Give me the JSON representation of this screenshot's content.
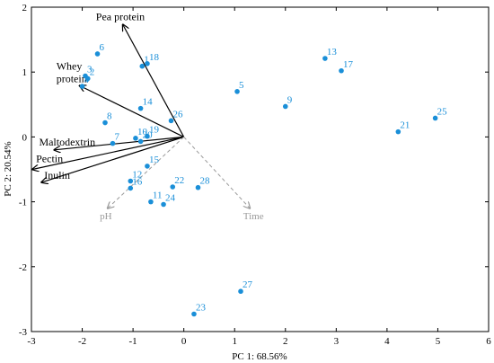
{
  "chart_data": {
    "type": "scatter",
    "title": "",
    "xlabel": "PC 1: 68.56%",
    "ylabel": "PC 2: 20.54%",
    "xlim": [
      -3,
      6
    ],
    "ylim": [
      -3,
      2
    ],
    "xticks": [
      "-3",
      "-2",
      "-1",
      "0",
      "1",
      "2",
      "3",
      "4",
      "5",
      "6"
    ],
    "yticks": [
      "2",
      "1",
      "0",
      "-1",
      "-2",
      "-3"
    ],
    "point_color": "#1a8fd8",
    "points": [
      {
        "label": "1",
        "x": -0.82,
        "y": 1.09
      },
      {
        "label": "2",
        "x": -1.89,
        "y": 0.9
      },
      {
        "label": "3",
        "x": -1.94,
        "y": 0.94
      },
      {
        "label": "4",
        "x": -2.0,
        "y": 0.78
      },
      {
        "label": "5",
        "x": 1.05,
        "y": 0.7
      },
      {
        "label": "6",
        "x": -1.7,
        "y": 1.28
      },
      {
        "label": "7",
        "x": -1.4,
        "y": -0.1
      },
      {
        "label": "8",
        "x": -1.55,
        "y": 0.22
      },
      {
        "label": "9",
        "x": 2.0,
        "y": 0.47
      },
      {
        "label": "10",
        "x": -0.95,
        "y": -0.02
      },
      {
        "label": "11",
        "x": -0.65,
        "y": -1.0
      },
      {
        "label": "12",
        "x": -1.05,
        "y": -0.68
      },
      {
        "label": "13",
        "x": 2.78,
        "y": 1.21
      },
      {
        "label": "14",
        "x": -0.85,
        "y": 0.44
      },
      {
        "label": "15",
        "x": -0.72,
        "y": -0.45
      },
      {
        "label": "16",
        "x": -1.05,
        "y": -0.79
      },
      {
        "label": "17",
        "x": 3.1,
        "y": 1.02
      },
      {
        "label": "18",
        "x": -0.72,
        "y": 1.13
      },
      {
        "label": "19",
        "x": -0.72,
        "y": 0.01
      },
      {
        "label": "20",
        "x": -0.85,
        "y": -0.07
      },
      {
        "label": "21",
        "x": 4.22,
        "y": 0.08
      },
      {
        "label": "22",
        "x": -0.22,
        "y": -0.77
      },
      {
        "label": "23",
        "x": 0.2,
        "y": -2.73
      },
      {
        "label": "24",
        "x": -0.4,
        "y": -1.04
      },
      {
        "label": "25",
        "x": 4.95,
        "y": 0.29
      },
      {
        "label": "26",
        "x": -0.25,
        "y": 0.25
      },
      {
        "label": "27",
        "x": 1.12,
        "y": -2.38
      },
      {
        "label": "28",
        "x": 0.28,
        "y": -0.78
      }
    ],
    "vectors": [
      {
        "label": "Pea protein",
        "x": -1.2,
        "y": 1.73,
        "kind": "active"
      },
      {
        "label": "Whey protein",
        "x": -2.05,
        "y": 0.79,
        "kind": "active"
      },
      {
        "label": "Maltodextrin",
        "x": -2.55,
        "y": -0.2,
        "kind": "active"
      },
      {
        "label": "Pectin",
        "x": -2.98,
        "y": -0.5,
        "kind": "active"
      },
      {
        "label": "Inulin",
        "x": -2.8,
        "y": -0.7,
        "kind": "active"
      },
      {
        "label": "pH",
        "x": -1.5,
        "y": -1.1,
        "kind": "supplementary"
      },
      {
        "label": "Time",
        "x": 1.3,
        "y": -1.1,
        "kind": "supplementary"
      }
    ]
  }
}
